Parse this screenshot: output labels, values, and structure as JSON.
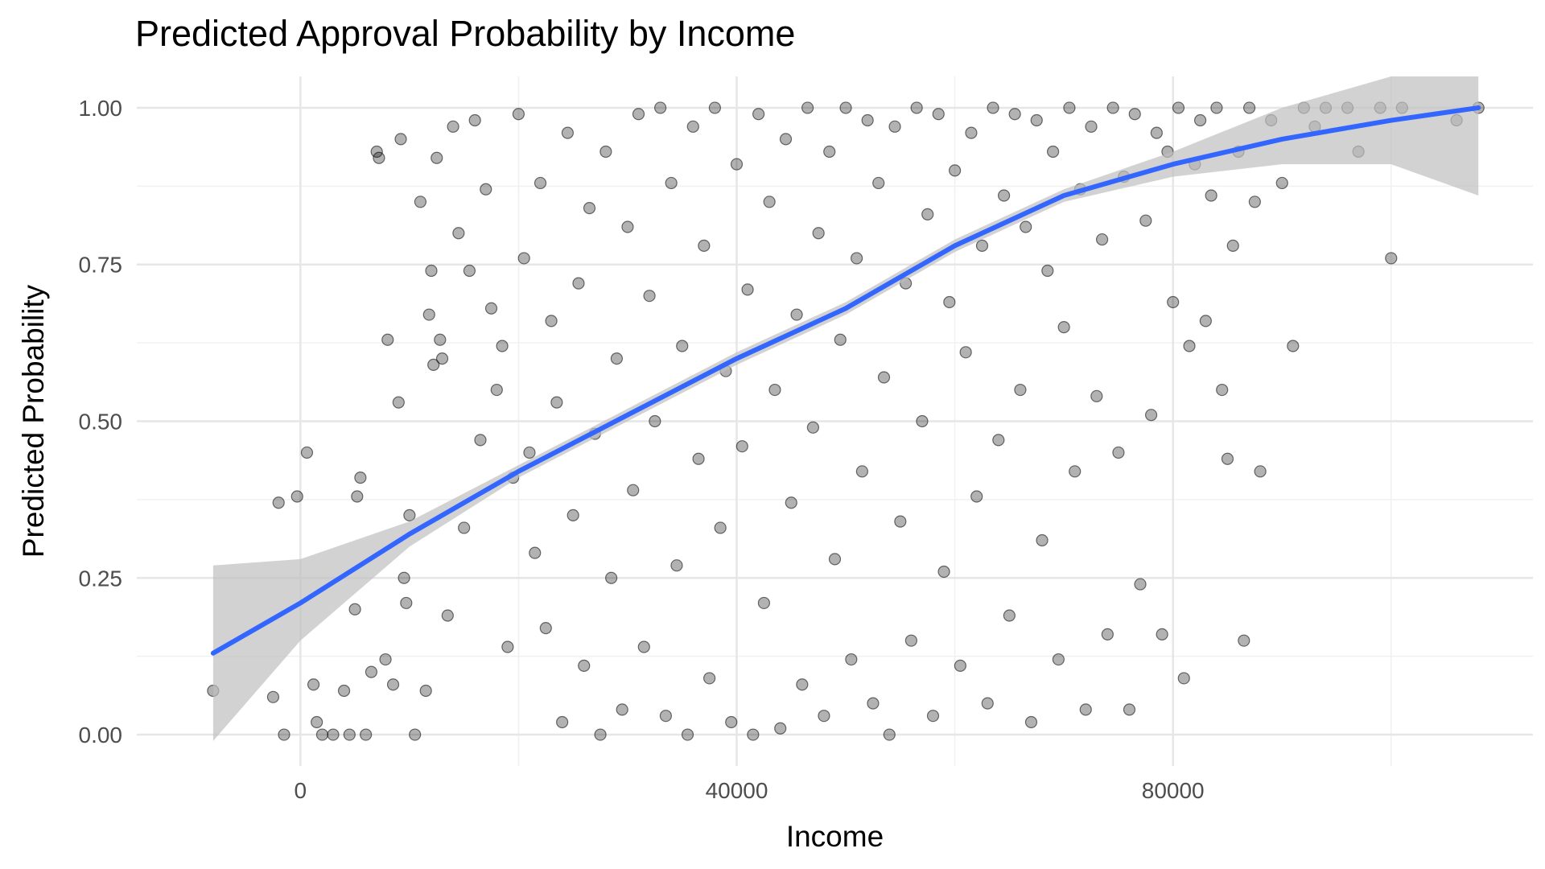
{
  "chart_data": {
    "type": "scatter",
    "title": "Predicted Approval Probability by Income",
    "xlabel": "Income",
    "ylabel": "Predicted Probability",
    "xlim": [
      -15000,
      113000
    ],
    "ylim": [
      -0.05,
      1.05
    ],
    "x_ticks": [
      0,
      40000,
      80000
    ],
    "x_tick_labels": [
      "0",
      "40000",
      "80000"
    ],
    "y_ticks": [
      0,
      0.25,
      0.5,
      0.75,
      1.0
    ],
    "y_tick_labels": [
      "0.00",
      "0.25",
      "0.50",
      "0.75",
      "1.00"
    ],
    "grid": true,
    "legend": "none",
    "point_color": "#000000",
    "point_alpha": 0.3,
    "smooth_color": "#3366ff",
    "ribbon_color": "#bfbfbf",
    "points_sampled": [
      [
        -8000,
        0.07
      ],
      [
        -2500,
        0.06
      ],
      [
        -2000,
        0.37
      ],
      [
        -1500,
        0.0
      ],
      [
        600,
        0.45
      ],
      [
        -300,
        0.38
      ],
      [
        1200,
        0.08
      ],
      [
        1500,
        0.02
      ],
      [
        2000,
        0.0
      ],
      [
        3000,
        0.0
      ],
      [
        4000,
        0.07
      ],
      [
        4500,
        0.0
      ],
      [
        5000,
        0.2
      ],
      [
        5200,
        0.38
      ],
      [
        5500,
        0.41
      ],
      [
        6000,
        0.0
      ],
      [
        6500,
        0.1
      ],
      [
        7000,
        0.93
      ],
      [
        7200,
        0.92
      ],
      [
        7800,
        0.12
      ],
      [
        8000,
        0.63
      ],
      [
        8500,
        0.08
      ],
      [
        9000,
        0.53
      ],
      [
        9200,
        0.95
      ],
      [
        9500,
        0.25
      ],
      [
        9700,
        0.21
      ],
      [
        10000,
        0.35
      ],
      [
        10500,
        0.0
      ],
      [
        11000,
        0.85
      ],
      [
        11500,
        0.07
      ],
      [
        11800,
        0.67
      ],
      [
        12000,
        0.74
      ],
      [
        12200,
        0.59
      ],
      [
        12500,
        0.92
      ],
      [
        12800,
        0.63
      ],
      [
        13000,
        0.6
      ],
      [
        13500,
        0.19
      ],
      [
        14000,
        0.97
      ],
      [
        14500,
        0.8
      ],
      [
        15000,
        0.33
      ],
      [
        15500,
        0.74
      ],
      [
        16000,
        0.98
      ],
      [
        16500,
        0.47
      ],
      [
        17000,
        0.87
      ],
      [
        17500,
        0.68
      ],
      [
        18000,
        0.55
      ],
      [
        18500,
        0.62
      ],
      [
        19000,
        0.14
      ],
      [
        19500,
        0.41
      ],
      [
        20000,
        0.99
      ],
      [
        20500,
        0.76
      ],
      [
        21000,
        0.45
      ],
      [
        21500,
        0.29
      ],
      [
        22000,
        0.88
      ],
      [
        22500,
        0.17
      ],
      [
        23000,
        0.66
      ],
      [
        23500,
        0.53
      ],
      [
        24000,
        0.02
      ],
      [
        24500,
        0.96
      ],
      [
        25000,
        0.35
      ],
      [
        25500,
        0.72
      ],
      [
        26000,
        0.11
      ],
      [
        26500,
        0.84
      ],
      [
        27000,
        0.48
      ],
      [
        27500,
        0.0
      ],
      [
        28000,
        0.93
      ],
      [
        28500,
        0.25
      ],
      [
        29000,
        0.6
      ],
      [
        29500,
        0.04
      ],
      [
        30000,
        0.81
      ],
      [
        30500,
        0.39
      ],
      [
        31000,
        0.99
      ],
      [
        31500,
        0.14
      ],
      [
        32000,
        0.7
      ],
      [
        32500,
        0.5
      ],
      [
        33000,
        1.0
      ],
      [
        33500,
        0.03
      ],
      [
        34000,
        0.88
      ],
      [
        34500,
        0.27
      ],
      [
        35000,
        0.62
      ],
      [
        35500,
        0.0
      ],
      [
        36000,
        0.97
      ],
      [
        36500,
        0.44
      ],
      [
        37000,
        0.78
      ],
      [
        37500,
        0.09
      ],
      [
        38000,
        1.0
      ],
      [
        38500,
        0.33
      ],
      [
        39000,
        0.58
      ],
      [
        39500,
        0.02
      ],
      [
        40000,
        0.91
      ],
      [
        40500,
        0.46
      ],
      [
        41000,
        0.71
      ],
      [
        41500,
        0.0
      ],
      [
        42000,
        0.99
      ],
      [
        42500,
        0.21
      ],
      [
        43000,
        0.85
      ],
      [
        43500,
        0.55
      ],
      [
        44000,
        0.01
      ],
      [
        44500,
        0.95
      ],
      [
        45000,
        0.37
      ],
      [
        45500,
        0.67
      ],
      [
        46000,
        0.08
      ],
      [
        46500,
        1.0
      ],
      [
        47000,
        0.49
      ],
      [
        47500,
        0.8
      ],
      [
        48000,
        0.03
      ],
      [
        48500,
        0.93
      ],
      [
        49000,
        0.28
      ],
      [
        49500,
        0.63
      ],
      [
        50000,
        1.0
      ],
      [
        50500,
        0.12
      ],
      [
        51000,
        0.76
      ],
      [
        51500,
        0.42
      ],
      [
        52000,
        0.98
      ],
      [
        52500,
        0.05
      ],
      [
        53000,
        0.88
      ],
      [
        53500,
        0.57
      ],
      [
        54000,
        0.0
      ],
      [
        54500,
        0.97
      ],
      [
        55000,
        0.34
      ],
      [
        55500,
        0.72
      ],
      [
        56000,
        0.15
      ],
      [
        56500,
        1.0
      ],
      [
        57000,
        0.5
      ],
      [
        57500,
        0.83
      ],
      [
        58000,
        0.03
      ],
      [
        58500,
        0.99
      ],
      [
        59000,
        0.26
      ],
      [
        59500,
        0.69
      ],
      [
        60000,
        0.9
      ],
      [
        60500,
        0.11
      ],
      [
        61000,
        0.61
      ],
      [
        61500,
        0.96
      ],
      [
        62000,
        0.38
      ],
      [
        62500,
        0.78
      ],
      [
        63000,
        0.05
      ],
      [
        63500,
        1.0
      ],
      [
        64000,
        0.47
      ],
      [
        64500,
        0.86
      ],
      [
        65000,
        0.19
      ],
      [
        65500,
        0.99
      ],
      [
        66000,
        0.55
      ],
      [
        66500,
        0.81
      ],
      [
        67000,
        0.02
      ],
      [
        67500,
        0.98
      ],
      [
        68000,
        0.31
      ],
      [
        68500,
        0.74
      ],
      [
        69000,
        0.93
      ],
      [
        69500,
        0.12
      ],
      [
        70000,
        0.65
      ],
      [
        70500,
        1.0
      ],
      [
        71000,
        0.42
      ],
      [
        71500,
        0.87
      ],
      [
        72000,
        0.04
      ],
      [
        72500,
        0.97
      ],
      [
        73000,
        0.54
      ],
      [
        73500,
        0.79
      ],
      [
        74000,
        0.16
      ],
      [
        74500,
        1.0
      ],
      [
        75000,
        0.45
      ],
      [
        75500,
        0.89
      ],
      [
        76000,
        0.04
      ],
      [
        76500,
        0.99
      ],
      [
        77000,
        0.24
      ],
      [
        77500,
        0.82
      ],
      [
        78000,
        0.51
      ],
      [
        78500,
        0.96
      ],
      [
        79000,
        0.16
      ],
      [
        79500,
        0.93
      ],
      [
        80000,
        0.69
      ],
      [
        80500,
        1.0
      ],
      [
        81000,
        0.09
      ],
      [
        81500,
        0.62
      ],
      [
        82000,
        0.91
      ],
      [
        82500,
        0.98
      ],
      [
        83000,
        0.66
      ],
      [
        83500,
        0.86
      ],
      [
        84000,
        1.0
      ],
      [
        84500,
        0.55
      ],
      [
        85000,
        0.44
      ],
      [
        85500,
        0.78
      ],
      [
        86000,
        0.93
      ],
      [
        86500,
        0.15
      ],
      [
        87000,
        1.0
      ],
      [
        87500,
        0.85
      ],
      [
        88000,
        0.42
      ],
      [
        89000,
        0.98
      ],
      [
        90000,
        0.88
      ],
      [
        91000,
        0.62
      ],
      [
        92000,
        1.0
      ],
      [
        93000,
        0.97
      ],
      [
        94000,
        1.0
      ],
      [
        96000,
        1.0
      ],
      [
        97000,
        0.93
      ],
      [
        99000,
        1.0
      ],
      [
        100000,
        0.76
      ],
      [
        101000,
        1.0
      ],
      [
        106000,
        0.98
      ],
      [
        108000,
        1.0
      ]
    ],
    "smooth_fit": {
      "x": [
        -8000,
        0,
        10000,
        20000,
        30000,
        40000,
        50000,
        60000,
        70000,
        80000,
        90000,
        100000,
        108000
      ],
      "y": [
        0.13,
        0.21,
        0.32,
        0.42,
        0.51,
        0.6,
        0.68,
        0.78,
        0.86,
        0.91,
        0.95,
        0.98,
        1.0
      ],
      "lower": [
        -0.01,
        0.15,
        0.3,
        0.41,
        0.5,
        0.59,
        0.67,
        0.77,
        0.85,
        0.89,
        0.91,
        0.91,
        0.86
      ],
      "upper": [
        0.27,
        0.28,
        0.34,
        0.43,
        0.52,
        0.61,
        0.69,
        0.79,
        0.87,
        0.93,
        1.0,
        1.05,
        1.05
      ]
    }
  }
}
